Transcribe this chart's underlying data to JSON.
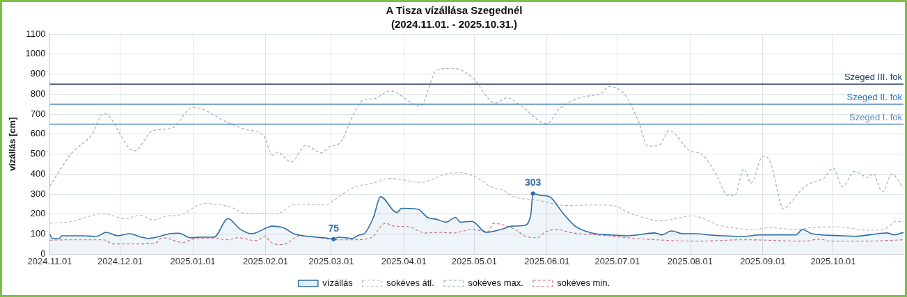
{
  "chart_data": {
    "type": "line",
    "title": "A Tisza vízállása Szegednél",
    "subtitle": "(2024.11.01. - 2025.10.31.)",
    "ylabel": "vízállás [cm]",
    "xlim": [
      "2024-11-01",
      "2025-10-31"
    ],
    "xticks": [
      {
        "value": "2024-11-01",
        "label": "2024.11.01"
      },
      {
        "value": "2024-12-01",
        "label": "2024.12.01"
      },
      {
        "value": "2025-01-01",
        "label": "2025.01.01"
      },
      {
        "value": "2025-02-01",
        "label": "2025.02.01"
      },
      {
        "value": "2025-03-01",
        "label": "2025.03.01"
      },
      {
        "value": "2025-04-01",
        "label": "2025.04.01"
      },
      {
        "value": "2025-05-01",
        "label": "2025.05.01"
      },
      {
        "value": "2025-06-01",
        "label": "2025.06.01"
      },
      {
        "value": "2025-07-01",
        "label": "2025.07.01"
      },
      {
        "value": "2025-08-01",
        "label": "2025.08.01"
      },
      {
        "value": "2025-09-01",
        "label": "2025.09.01"
      },
      {
        "value": "2025-10-01",
        "label": "2025.10.01"
      }
    ],
    "ylim": [
      0,
      1100
    ],
    "yticks": [
      0,
      100,
      200,
      300,
      400,
      500,
      600,
      700,
      800,
      900,
      1000,
      1100
    ],
    "grid": true,
    "legend": "bottom",
    "marker": "none",
    "series": [
      {
        "name": "vízállás",
        "type": "area",
        "color": "#2e6da4",
        "line_style": "solid",
        "x": [
          "2024-11-01",
          "2024-11-02",
          "2024-11-05",
          "2024-11-06",
          "2024-11-14",
          "2024-11-21",
          "2024-11-25",
          "2024-11-30",
          "2024-12-05",
          "2024-12-10",
          "2024-12-13",
          "2024-12-18",
          "2024-12-22",
          "2024-12-26",
          "2024-12-31",
          "2025-01-04",
          "2025-01-10",
          "2025-01-16",
          "2025-01-21",
          "2025-01-26",
          "2025-02-04",
          "2025-02-09",
          "2025-02-13",
          "2025-02-17",
          "2025-02-28",
          "2025-03-02",
          "2025-03-04",
          "2025-03-10",
          "2025-03-13",
          "2025-03-15",
          "2025-03-19",
          "2025-03-22",
          "2025-03-29",
          "2025-03-31",
          "2025-04-07",
          "2025-04-11",
          "2025-04-15",
          "2025-04-19",
          "2025-04-23",
          "2025-04-25",
          "2025-04-30",
          "2025-05-06",
          "2025-05-13",
          "2025-05-17",
          "2025-05-22",
          "2025-05-25",
          "2025-05-26",
          "2025-05-29",
          "2025-06-02",
          "2025-06-08",
          "2025-06-13",
          "2025-06-20",
          "2025-06-28",
          "2025-07-05",
          "2025-07-17",
          "2025-07-20",
          "2025-07-24",
          "2025-07-29",
          "2025-08-04",
          "2025-08-09",
          "2025-08-24",
          "2025-08-31",
          "2025-09-15",
          "2025-09-18",
          "2025-09-22",
          "2025-10-05",
          "2025-10-10",
          "2025-10-24",
          "2025-10-27",
          "2025-10-31"
        ],
        "values": [
          100,
          79,
          77,
          92,
          92,
          89,
          109,
          92,
          102,
          85,
          79,
          89,
          102,
          105,
          82,
          85,
          85,
          178,
          126,
          102,
          140,
          130,
          102,
          92,
          79,
          75,
          85,
          79,
          96,
          102,
          184,
          287,
          208,
          229,
          225,
          184,
          174,
          160,
          184,
          160,
          164,
          109,
          126,
          140,
          143,
          191,
          303,
          294,
          287,
          202,
          140,
          106,
          96,
          92,
          106,
          96,
          116,
          102,
          102,
          96,
          89,
          96,
          96,
          123,
          102,
          92,
          89,
          106,
          96,
          109
        ]
      },
      {
        "name": "sokéves átl.",
        "type": "line",
        "color": "#b4b4b4",
        "line_style": "dashed",
        "x": [
          "2024-11-01",
          "2024-11-09",
          "2024-11-24",
          "2024-12-03",
          "2024-12-10",
          "2024-12-15",
          "2024-12-21",
          "2024-12-26",
          "2025-01-06",
          "2025-01-17",
          "2025-01-23",
          "2025-02-06",
          "2025-02-12",
          "2025-02-17",
          "2025-02-26",
          "2025-03-03",
          "2025-03-10",
          "2025-03-19",
          "2025-03-26",
          "2025-04-08",
          "2025-04-19",
          "2025-04-24",
          "2025-05-01",
          "2025-05-08",
          "2025-05-13",
          "2025-05-18",
          "2025-05-28",
          "2025-06-09",
          "2025-06-22",
          "2025-06-29",
          "2025-07-07",
          "2025-07-20",
          "2025-08-02",
          "2025-08-14",
          "2025-08-28",
          "2025-09-04",
          "2025-09-15",
          "2025-09-22",
          "2025-10-02",
          "2025-10-16",
          "2025-10-23",
          "2025-10-28",
          "2025-10-31"
        ],
        "values": [
          155,
          160,
          202,
          178,
          195,
          171,
          191,
          195,
          253,
          236,
          205,
          202,
          243,
          249,
          246,
          277,
          331,
          355,
          379,
          359,
          400,
          407,
          389,
          338,
          321,
          287,
          270,
          243,
          246,
          243,
          202,
          167,
          191,
          143,
          123,
          133,
          123,
          133,
          137,
          120,
          126,
          164,
          161
        ]
      },
      {
        "name": "sokéves max.",
        "type": "line",
        "color": "#9aa6b4",
        "line_style": "dashed",
        "x": [
          "2024-11-01",
          "2024-11-10",
          "2024-11-19",
          "2024-11-24",
          "2024-12-07",
          "2024-12-15",
          "2024-12-23",
          "2025-01-01",
          "2025-01-17",
          "2025-01-24",
          "2025-01-31",
          "2025-02-04",
          "2025-02-06",
          "2025-02-12",
          "2025-02-18",
          "2025-02-25",
          "2025-02-28",
          "2025-03-05",
          "2025-03-10",
          "2025-03-15",
          "2025-03-19",
          "2025-03-26",
          "2025-04-08",
          "2025-04-15",
          "2025-04-22",
          "2025-04-30",
          "2025-05-10",
          "2025-05-15",
          "2025-05-21",
          "2025-06-01",
          "2025-06-06",
          "2025-06-15",
          "2025-06-25",
          "2025-06-27",
          "2025-07-04",
          "2025-07-10",
          "2025-07-14",
          "2025-07-19",
          "2025-07-23",
          "2025-08-01",
          "2025-08-06",
          "2025-08-12",
          "2025-08-17",
          "2025-08-20",
          "2025-08-24",
          "2025-08-27",
          "2025-09-01",
          "2025-09-04",
          "2025-09-10",
          "2025-09-13",
          "2025-09-18",
          "2025-09-22",
          "2025-09-27",
          "2025-10-01",
          "2025-10-05",
          "2025-10-10",
          "2025-10-16",
          "2025-10-18",
          "2025-10-22",
          "2025-10-26",
          "2025-10-31"
        ],
        "values": [
          340,
          500,
          600,
          704,
          516,
          618,
          629,
          734,
          652,
          622,
          594,
          495,
          509,
          461,
          543,
          506,
          536,
          560,
          687,
          772,
          776,
          816,
          741,
          919,
          929,
          885,
          755,
          782,
          741,
          652,
          724,
          782,
          810,
          837,
          800,
          663,
          540,
          547,
          618,
          516,
          499,
          400,
          294,
          294,
          427,
          355,
          489,
          465,
          225,
          260,
          328,
          359,
          379,
          430,
          338,
          413,
          383,
          403,
          311,
          400,
          331
        ]
      },
      {
        "name": "sokéves min.",
        "type": "line",
        "color": "#d06a78",
        "line_style": "dashed",
        "x": [
          "2024-11-01",
          "2024-11-10",
          "2024-11-24",
          "2024-11-28",
          "2024-12-07",
          "2024-12-16",
          "2024-12-19",
          "2024-12-28",
          "2025-01-01",
          "2025-01-10",
          "2025-01-16",
          "2025-01-20",
          "2025-01-28",
          "2025-02-01",
          "2025-02-03",
          "2025-02-08",
          "2025-02-16",
          "2025-02-28",
          "2025-03-03",
          "2025-03-10",
          "2025-03-18",
          "2025-03-24",
          "2025-03-28",
          "2025-04-03",
          "2025-04-10",
          "2025-04-16",
          "2025-04-22",
          "2025-04-30",
          "2025-05-07",
          "2025-05-09",
          "2025-05-18",
          "2025-05-23",
          "2025-05-28",
          "2025-05-31",
          "2025-06-05",
          "2025-06-12",
          "2025-06-27",
          "2025-07-05",
          "2025-07-13",
          "2025-08-04",
          "2025-08-24",
          "2025-09-19",
          "2025-09-25",
          "2025-09-30",
          "2025-10-14",
          "2025-10-31"
        ],
        "values": [
          70,
          72,
          72,
          51,
          51,
          55,
          82,
          58,
          75,
          79,
          72,
          82,
          68,
          89,
          61,
          48,
          92,
          75,
          72,
          72,
          82,
          154,
          140,
          137,
          106,
          109,
          106,
          123,
          113,
          154,
          126,
          89,
          82,
          109,
          123,
          106,
          92,
          82,
          75,
          65,
          72,
          65,
          75,
          65,
          65,
          72
        ]
      }
    ],
    "ref_lines": [
      {
        "axis": "y",
        "value": 850,
        "label": "Szeged III. fok",
        "color": "#1f3a5f"
      },
      {
        "axis": "y",
        "value": 750,
        "label": "Szeged II. fok",
        "color": "#2e75b6"
      },
      {
        "axis": "y",
        "value": 650,
        "label": "Szeged I. fok",
        "color": "#5b8db8"
      }
    ],
    "annotations": [
      {
        "text": "75",
        "x": "2025-03-02",
        "y": 75
      },
      {
        "text": "303",
        "x": "2025-05-26",
        "y": 303
      }
    ]
  }
}
